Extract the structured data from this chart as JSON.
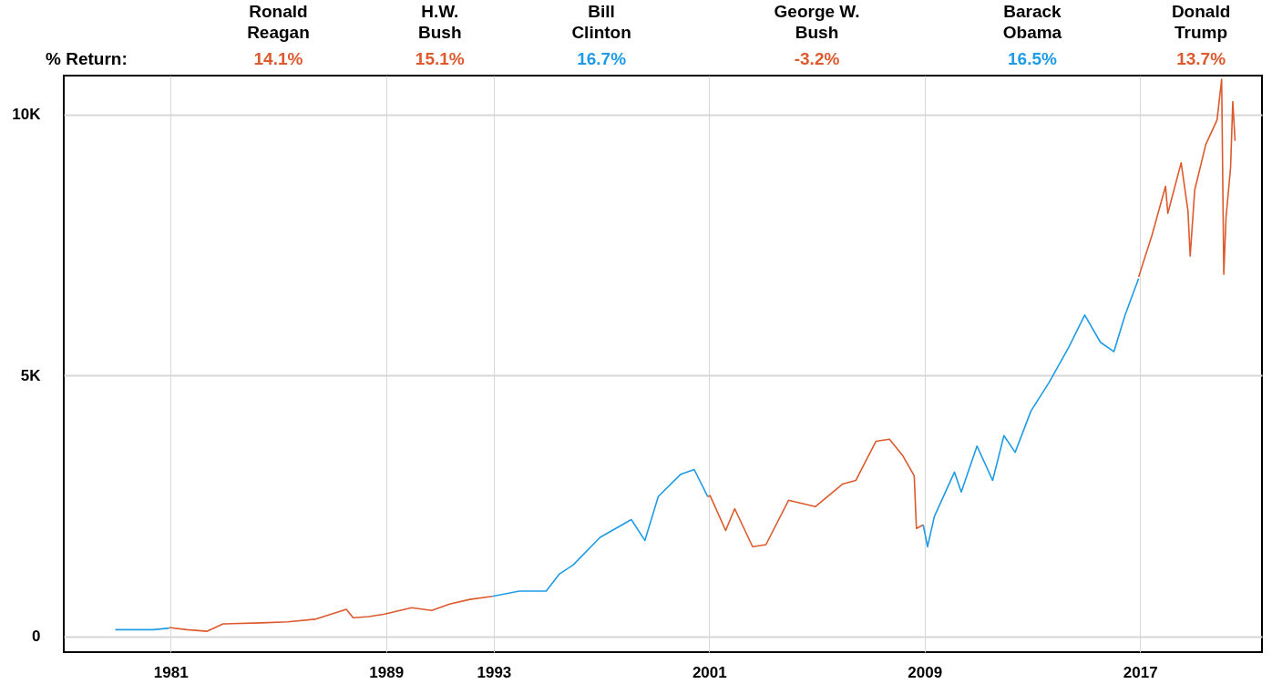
{
  "chart_data": {
    "type": "line",
    "xlim": [
      "1977-02",
      "2021-08"
    ],
    "ylim": [
      -300,
      10750
    ],
    "xticks": [
      {
        "value": "1981-01-20",
        "label": "1981"
      },
      {
        "value": "1989-01-20",
        "label": "1989"
      },
      {
        "value": "1993-01-20",
        "label": "1993"
      },
      {
        "value": "2001-01-20",
        "label": "2001"
      },
      {
        "value": "2009-01-20",
        "label": "2009"
      },
      {
        "value": "2017-01-20",
        "label": "2017"
      }
    ],
    "yticks": [
      {
        "value": 0,
        "label": "0"
      },
      {
        "value": 5000,
        "label": "5K"
      },
      {
        "value": 10000,
        "label": "10K"
      }
    ],
    "grid": true,
    "legend": false,
    "line_style": "solid",
    "marker": "none",
    "series": [
      {
        "color": "#1f9be6",
        "x": [
          "1979-01",
          "1979-09",
          "1980-06",
          "1981-01"
        ],
        "values": [
          130,
          130,
          130,
          160
        ]
      },
      {
        "color": "#dc5a2e",
        "x": [
          "1981-01",
          "1981-09",
          "1982-06",
          "1983-01",
          "1984-06",
          "1985-06",
          "1986-06",
          "1987-08",
          "1987-11",
          "1988-06",
          "1989-01",
          "1990-01",
          "1990-10",
          "1991-06",
          "1992-03",
          "1993-01"
        ],
        "values": [
          170,
          130,
          100,
          240,
          260,
          280,
          330,
          520,
          360,
          380,
          430,
          550,
          500,
          620,
          710,
          770
        ]
      },
      {
        "color": "#1f9be6",
        "x": [
          "1993-01",
          "1994-01",
          "1995-01",
          "1995-07",
          "1996-01",
          "1997-01",
          "1998-03",
          "1998-09",
          "1999-03",
          "2000-01",
          "2000-07",
          "2001-01"
        ],
        "values": [
          770,
          870,
          870,
          1200,
          1370,
          1900,
          2240,
          1840,
          2680,
          3110,
          3200,
          2680
        ]
      },
      {
        "color": "#dc5a2e",
        "x": [
          "2001-01",
          "2001-02",
          "2001-09",
          "2002-01",
          "2002-09",
          "2003-03",
          "2004-01",
          "2005-01",
          "2006-01",
          "2006-07",
          "2007-04",
          "2007-10",
          "2008-04",
          "2008-09",
          "2008-10",
          "2009-01"
        ],
        "values": [
          2680,
          2700,
          2030,
          2450,
          1720,
          1760,
          2610,
          2490,
          2920,
          2990,
          3740,
          3780,
          3460,
          3080,
          2070,
          2140
        ]
      },
      {
        "color": "#1f9be6",
        "x": [
          "2009-01",
          "2009-03",
          "2009-06",
          "2010-03",
          "2010-06",
          "2011-01",
          "2011-08",
          "2012-01",
          "2012-06",
          "2013-01",
          "2013-09",
          "2014-06",
          "2015-01",
          "2015-08",
          "2016-02",
          "2016-07",
          "2017-01"
        ],
        "values": [
          2140,
          1720,
          2300,
          3150,
          2770,
          3650,
          2990,
          3850,
          3530,
          4320,
          4860,
          5550,
          6160,
          5640,
          5460,
          6160,
          6860
        ]
      },
      {
        "color": "#dc5a2e",
        "x": [
          "2017-01",
          "2017-07",
          "2018-01",
          "2018-02",
          "2018-08",
          "2018-11",
          "2018-12",
          "2019-02",
          "2019-07",
          "2019-12",
          "2020-02",
          "2020-03",
          "2020-04",
          "2020-06",
          "2020-07",
          "2020-08"
        ],
        "values": [
          6890,
          7690,
          8630,
          8110,
          9080,
          8160,
          7290,
          8560,
          9430,
          9900,
          10680,
          6940,
          8040,
          8980,
          10250,
          9500
        ]
      }
    ],
    "annotations": [
      "% Return:",
      "Ronald Reagan",
      "14.1%",
      "H.W. Bush",
      "15.1%",
      "Bill Clinton",
      "16.7%",
      "George W. Bush",
      "-3.2%",
      "Barack Obama",
      "16.5%",
      "Donald Trump",
      "13.7%"
    ]
  }
}
